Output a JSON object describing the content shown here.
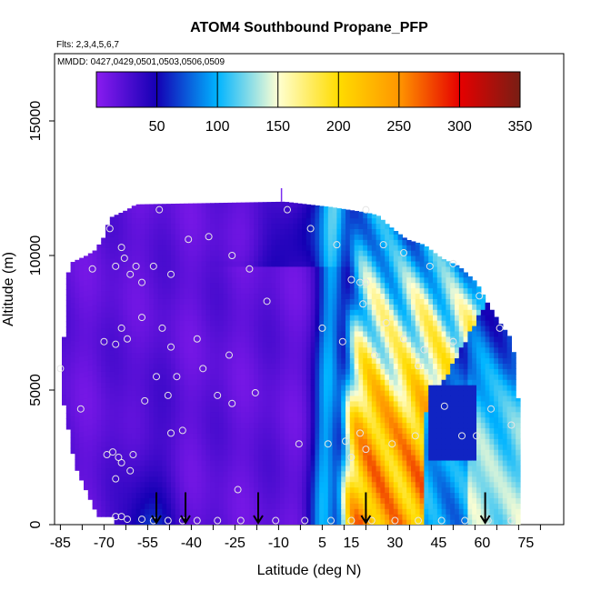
{
  "chart_data": {
    "type": "heatmap",
    "title": "ATOM4 Southbound Propane_PFP",
    "flights_label": "Flts: 2,3,4,5,6,7",
    "dates_label": "MMDD: 0427,0429,0501,0503,0506,0509",
    "xlabel": "Latitude (deg N)",
    "ylabel": "Altitude (m)",
    "xlim": [
      -87,
      88
    ],
    "ylim": [
      0,
      17500
    ],
    "x_tick_labels": [
      "-85",
      "-70",
      "-55",
      "-40",
      "-25",
      "-10",
      "5",
      "15",
      "30",
      "45",
      "60",
      "75"
    ],
    "x_tick_values": [
      -85,
      -70,
      -55,
      -40,
      -25,
      -10,
      5,
      15,
      30,
      45,
      60,
      75
    ],
    "y_tick_labels": [
      "0",
      "5000",
      "10000",
      "15000"
    ],
    "y_tick_values": [
      0,
      5000,
      10000,
      15000
    ],
    "colorbar": {
      "min": 0,
      "max": 350,
      "tick_labels": [
        "50",
        "100",
        "150",
        "200",
        "250",
        "300",
        "350"
      ],
      "tick_values": [
        50,
        100,
        150,
        200,
        250,
        300,
        350
      ],
      "colors": [
        "#8a1cf0",
        "#1400b4",
        "#00b4ff",
        "#ffffd2",
        "#ffdc00",
        "#ff9600",
        "#e60000",
        "#781e14"
      ]
    },
    "arrow_latitudes": [
      -52,
      -42,
      -17,
      20,
      61
    ],
    "samples": [
      {
        "lat": -85,
        "alt": 5800
      },
      {
        "lat": -78,
        "alt": 4300
      },
      {
        "lat": -74,
        "alt": 9500
      },
      {
        "lat": -68,
        "alt": 11000
      },
      {
        "lat": -66,
        "alt": 9600
      },
      {
        "lat": -64,
        "alt": 10300
      },
      {
        "lat": -63,
        "alt": 9900
      },
      {
        "lat": -61,
        "alt": 9300
      },
      {
        "lat": -59,
        "alt": 9600
      },
      {
        "lat": -57,
        "alt": 9000
      },
      {
        "lat": -53,
        "alt": 9600
      },
      {
        "lat": -51,
        "alt": 11700
      },
      {
        "lat": -47,
        "alt": 9300
      },
      {
        "lat": -41,
        "alt": 10600
      },
      {
        "lat": -34,
        "alt": 10700
      },
      {
        "lat": -26,
        "alt": 10000
      },
      {
        "lat": -20,
        "alt": 9500
      },
      {
        "lat": -14,
        "alt": 8300
      },
      {
        "lat": -64,
        "alt": 7300
      },
      {
        "lat": -66,
        "alt": 6700
      },
      {
        "lat": -70,
        "alt": 6800
      },
      {
        "lat": -62,
        "alt": 6900
      },
      {
        "lat": -57,
        "alt": 7700
      },
      {
        "lat": -50,
        "alt": 7300
      },
      {
        "lat": -47,
        "alt": 6600
      },
      {
        "lat": -38,
        "alt": 6900
      },
      {
        "lat": -27,
        "alt": 6300
      },
      {
        "lat": -45,
        "alt": 5500
      },
      {
        "lat": -52,
        "alt": 5500
      },
      {
        "lat": -36,
        "alt": 5800
      },
      {
        "lat": -48,
        "alt": 4800
      },
      {
        "lat": -56,
        "alt": 4600
      },
      {
        "lat": -31,
        "alt": 4800
      },
      {
        "lat": -26,
        "alt": 4500
      },
      {
        "lat": -18,
        "alt": 4900
      },
      {
        "lat": -43,
        "alt": 3500
      },
      {
        "lat": -47,
        "alt": 3400
      },
      {
        "lat": -67,
        "alt": 2700
      },
      {
        "lat": -65,
        "alt": 2500
      },
      {
        "lat": -69,
        "alt": 2600
      },
      {
        "lat": -60,
        "alt": 2600
      },
      {
        "lat": -64,
        "alt": 2300
      },
      {
        "lat": -66,
        "alt": 1700
      },
      {
        "lat": -61,
        "alt": 2000
      },
      {
        "lat": -24,
        "alt": 1300
      },
      {
        "lat": -66,
        "alt": 300
      },
      {
        "lat": -62,
        "alt": 200
      },
      {
        "lat": -64,
        "alt": 300
      },
      {
        "lat": -57,
        "alt": 200
      },
      {
        "lat": -53,
        "alt": 150
      },
      {
        "lat": -48,
        "alt": 150
      },
      {
        "lat": -43,
        "alt": 150
      },
      {
        "lat": -38,
        "alt": 150
      },
      {
        "lat": -31,
        "alt": 150
      },
      {
        "lat": -23,
        "alt": 150
      },
      {
        "lat": -11,
        "alt": 150
      },
      {
        "lat": -1,
        "alt": 150
      },
      {
        "lat": 8,
        "alt": 150
      },
      {
        "lat": 15,
        "alt": 150
      },
      {
        "lat": 22,
        "alt": 150
      },
      {
        "lat": 30,
        "alt": 150
      },
      {
        "lat": 38,
        "alt": 150
      },
      {
        "lat": 46,
        "alt": 150
      },
      {
        "lat": 54,
        "alt": 150
      },
      {
        "lat": 62,
        "alt": 150
      },
      {
        "lat": 70,
        "alt": 150
      },
      {
        "lat": -7,
        "alt": 11700
      },
      {
        "lat": 1,
        "alt": 11000
      },
      {
        "lat": 10,
        "alt": 10400
      },
      {
        "lat": 20,
        "alt": 11700
      },
      {
        "lat": 26,
        "alt": 10400
      },
      {
        "lat": 33,
        "alt": 10100
      },
      {
        "lat": 42,
        "alt": 9600
      },
      {
        "lat": 50,
        "alt": 9700
      },
      {
        "lat": 59,
        "alt": 8500
      },
      {
        "lat": 15,
        "alt": 9100
      },
      {
        "lat": 18,
        "alt": 9000
      },
      {
        "lat": 20,
        "alt": 9000
      },
      {
        "lat": 19,
        "alt": 8200
      },
      {
        "lat": 27,
        "alt": 7500
      },
      {
        "lat": 33,
        "alt": 6900
      },
      {
        "lat": 40,
        "alt": 6500
      },
      {
        "lat": 50,
        "alt": 6800
      },
      {
        "lat": 66,
        "alt": 7300
      },
      {
        "lat": 5,
        "alt": 7300
      },
      {
        "lat": 12,
        "alt": 6800
      },
      {
        "lat": 23,
        "alt": 6300
      },
      {
        "lat": 38,
        "alt": 5900
      },
      {
        "lat": 47,
        "alt": 4400
      },
      {
        "lat": 63,
        "alt": 4300
      },
      {
        "lat": 70,
        "alt": 3700
      },
      {
        "lat": 18,
        "alt": 3400
      },
      {
        "lat": 37,
        "alt": 3300
      },
      {
        "lat": 53,
        "alt": 3300
      },
      {
        "lat": 58,
        "alt": 3300
      },
      {
        "lat": 13,
        "alt": 3100
      },
      {
        "lat": 29,
        "alt": 3000
      },
      {
        "lat": -3,
        "alt": 3000
      },
      {
        "lat": 7,
        "alt": 3000
      },
      {
        "lat": 20,
        "alt": 2800
      },
      {
        "lat": 15,
        "alt": 2500
      }
    ]
  }
}
